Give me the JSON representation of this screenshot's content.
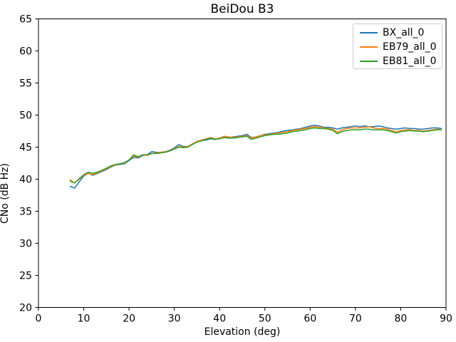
{
  "figure": {
    "kind": "matplotlib-line-chart"
  },
  "colors": {
    "background": "#ffffff",
    "axes": "#000000",
    "legend_border": "#cccccc",
    "series_blue": "#1f77b4",
    "series_orange": "#ff7f0e",
    "series_green": "#2ca02c"
  },
  "chart_data": {
    "type": "line",
    "title": "BeiDou B3",
    "xlabel": "Elevation (deg)",
    "ylabel": "CNo (dB Hz)",
    "xlim": [
      0,
      90
    ],
    "ylim": [
      20,
      65
    ],
    "xticks": [
      0,
      10,
      20,
      30,
      40,
      50,
      60,
      70,
      80,
      90
    ],
    "yticks": [
      20,
      25,
      30,
      35,
      40,
      45,
      50,
      55,
      60,
      65
    ],
    "grid": false,
    "legend_position": "upper right",
    "x": [
      7,
      8,
      9,
      10,
      11,
      12,
      13,
      14,
      15,
      16,
      17,
      18,
      19,
      20,
      21,
      22,
      23,
      24,
      25,
      26,
      27,
      28,
      29,
      30,
      31,
      32,
      33,
      34,
      35,
      36,
      37,
      38,
      39,
      40,
      41,
      42,
      43,
      44,
      45,
      46,
      47,
      48,
      49,
      50,
      51,
      52,
      53,
      54,
      55,
      56,
      57,
      58,
      59,
      60,
      61,
      62,
      63,
      64,
      65,
      66,
      67,
      68,
      69,
      70,
      71,
      72,
      73,
      74,
      75,
      76,
      77,
      78,
      79,
      80,
      81,
      82,
      83,
      84,
      85,
      86,
      87,
      88,
      89
    ],
    "series": [
      {
        "name": "BX_all_0",
        "color": "#1f77b4",
        "values": [
          38.9,
          38.6,
          39.6,
          40.5,
          40.9,
          40.6,
          40.9,
          41.2,
          41.5,
          41.9,
          42.2,
          42.3,
          42.4,
          42.9,
          43.4,
          43.3,
          43.7,
          43.8,
          44.3,
          44.2,
          44.2,
          44.3,
          44.5,
          44.9,
          45.4,
          45.1,
          45.1,
          45.5,
          45.8,
          46.0,
          46.1,
          46.3,
          46.2,
          46.4,
          46.6,
          46.5,
          46.6,
          46.7,
          46.8,
          47.0,
          46.5,
          46.6,
          46.8,
          47.0,
          47.1,
          47.2,
          47.3,
          47.5,
          47.6,
          47.7,
          47.8,
          47.9,
          48.1,
          48.3,
          48.4,
          48.3,
          48.1,
          48.1,
          48.0,
          47.8,
          48.0,
          48.1,
          48.2,
          48.3,
          48.2,
          48.3,
          48.2,
          48.2,
          48.3,
          48.2,
          48.0,
          47.9,
          47.8,
          47.9,
          48.0,
          47.9,
          47.9,
          47.8,
          47.8,
          47.9,
          48.0,
          48.0,
          47.9
        ]
      },
      {
        "name": "EB79_all_0",
        "color": "#ff7f0e",
        "values": [
          39.9,
          39.4,
          40.0,
          40.6,
          40.9,
          40.7,
          41.0,
          41.3,
          41.6,
          42.0,
          42.2,
          42.4,
          42.5,
          43.0,
          43.6,
          43.4,
          43.8,
          43.7,
          44.0,
          44.1,
          44.2,
          44.3,
          44.4,
          44.8,
          45.1,
          45.0,
          45.1,
          45.5,
          45.9,
          46.1,
          46.3,
          46.5,
          46.3,
          46.4,
          46.7,
          46.6,
          46.5,
          46.6,
          46.7,
          46.8,
          46.4,
          46.6,
          46.8,
          46.9,
          47.0,
          47.1,
          47.2,
          47.3,
          47.4,
          47.6,
          47.7,
          47.8,
          47.9,
          48.1,
          48.2,
          48.1,
          48.0,
          47.9,
          47.8,
          47.3,
          47.7,
          47.9,
          48.0,
          48.0,
          48.0,
          48.1,
          48.2,
          48.0,
          47.9,
          47.9,
          47.8,
          47.6,
          47.4,
          47.6,
          47.7,
          47.7,
          47.6,
          47.6,
          47.5,
          47.6,
          47.7,
          47.8,
          47.7
        ]
      },
      {
        "name": "EB81_all_0",
        "color": "#2ca02c",
        "values": [
          39.7,
          39.4,
          40.1,
          40.7,
          41.1,
          40.9,
          41.1,
          41.4,
          41.7,
          42.1,
          42.3,
          42.4,
          42.6,
          43.0,
          43.8,
          43.5,
          43.8,
          43.8,
          44.0,
          44.0,
          44.1,
          44.2,
          44.4,
          44.7,
          45.0,
          44.9,
          45.0,
          45.4,
          45.8,
          46.0,
          46.2,
          46.4,
          46.2,
          46.3,
          46.5,
          46.4,
          46.4,
          46.5,
          46.6,
          46.7,
          46.2,
          46.4,
          46.6,
          46.8,
          46.9,
          47.0,
          47.0,
          47.1,
          47.2,
          47.4,
          47.5,
          47.6,
          47.7,
          47.9,
          48.0,
          47.9,
          47.9,
          47.8,
          47.6,
          47.1,
          47.4,
          47.6,
          47.7,
          47.7,
          47.7,
          47.8,
          47.8,
          47.7,
          47.7,
          47.7,
          47.6,
          47.4,
          47.2,
          47.4,
          47.5,
          47.6,
          47.5,
          47.5,
          47.4,
          47.5,
          47.6,
          47.7,
          47.7
        ]
      }
    ]
  }
}
